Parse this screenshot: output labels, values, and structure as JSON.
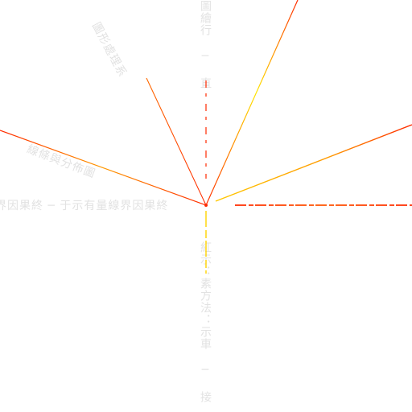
{
  "colors": {
    "background": "#ffffff",
    "ray_primary": "#ff2a00",
    "ray_secondary": "#ffe600",
    "faint_text": "#e2e2e2"
  },
  "labels": {
    "left_horizontal": "界因果終 ─ 于示有量線界因果終",
    "top_vertical": "圖繪行 ─ 直",
    "bottom_vertical": "紅示：素方法：示車 ─ 接",
    "upper_left_diagonal": "圖形處理系",
    "left_diagonal": "線條與分佈圖"
  }
}
